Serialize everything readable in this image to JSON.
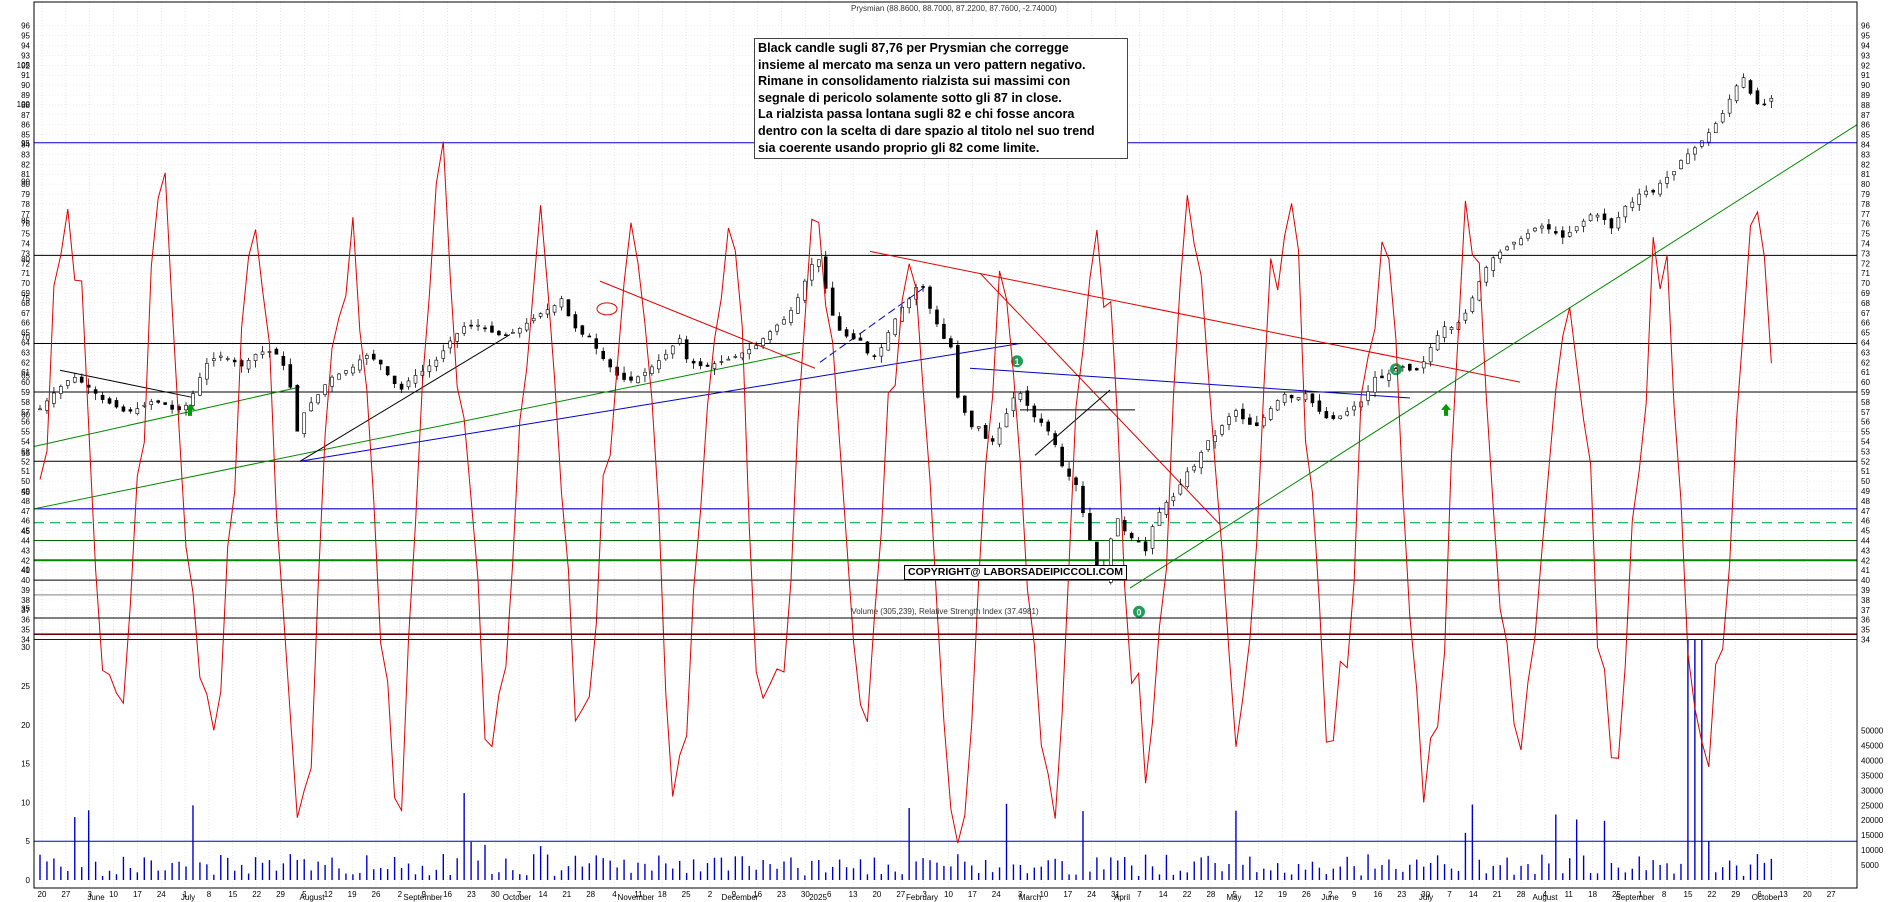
{
  "chart_data": [
    {
      "type": "candlestick",
      "title": "Prysmian (88.8600, 88.7000, 87.2200, 87.7600, -2.74000)",
      "ylim": [
        34,
        96
      ],
      "y_ticks": [
        34,
        35,
        36,
        37,
        38,
        39,
        40,
        41,
        42,
        43,
        44,
        45,
        46,
        47,
        48,
        49,
        50,
        51,
        52,
        53,
        54,
        55,
        56,
        57,
        58,
        59,
        60,
        61,
        62,
        63,
        64,
        65,
        66,
        67,
        68,
        69,
        70,
        71,
        72,
        73,
        74,
        75,
        76,
        77,
        78,
        79,
        80,
        81,
        82,
        83,
        84,
        85,
        86,
        87,
        88,
        89,
        90,
        91,
        92,
        93,
        94,
        95,
        96
      ],
      "last_close": 87.76,
      "price_path": [
        [
          0,
          57.3
        ],
        [
          10,
          59.2
        ],
        [
          20,
          60.6
        ],
        [
          30,
          59.4
        ],
        [
          38,
          58.2
        ],
        [
          45,
          57.6
        ],
        [
          52,
          56.9
        ],
        [
          60,
          57.4
        ],
        [
          68,
          58.1
        ],
        [
          75,
          57.8
        ],
        [
          82,
          57.0
        ],
        [
          88,
          57.6
        ],
        [
          93,
          59.0
        ],
        [
          100,
          61.8
        ],
        [
          108,
          62.7
        ],
        [
          115,
          62.3
        ],
        [
          122,
          61.6
        ],
        [
          130,
          62.8
        ],
        [
          137,
          63.2
        ],
        [
          143,
          62.8
        ],
        [
          148,
          61.4
        ],
        [
          153,
          58.4
        ],
        [
          156,
          54.2
        ],
        [
          160,
          57.2
        ],
        [
          167,
          58.5
        ],
        [
          175,
          60.4
        ],
        [
          183,
          61.0
        ],
        [
          190,
          61.6
        ],
        [
          196,
          62.8
        ],
        [
          200,
          62.5
        ],
        [
          206,
          61.8
        ],
        [
          212,
          60.2
        ],
        [
          218,
          59.2
        ],
        [
          224,
          60.4
        ],
        [
          232,
          61.2
        ],
        [
          240,
          62.3
        ],
        [
          248,
          64.2
        ],
        [
          256,
          65.6
        ],
        [
          264,
          65.8
        ],
        [
          272,
          65.1
        ],
        [
          280,
          64.6
        ],
        [
          288,
          65.2
        ],
        [
          296,
          66.2
        ],
        [
          304,
          67.1
        ],
        [
          310,
          67.6
        ],
        [
          316,
          68.6
        ],
        [
          320,
          66.2
        ],
        [
          326,
          64.9
        ],
        [
          332,
          64.6
        ],
        [
          338,
          62.8
        ],
        [
          344,
          61.6
        ],
        [
          350,
          60.4
        ],
        [
          356,
          60.1
        ],
        [
          362,
          60.6
        ],
        [
          368,
          61.3
        ],
        [
          374,
          62.2
        ],
        [
          380,
          63.1
        ],
        [
          386,
          64.6
        ],
        [
          390,
          62.4
        ],
        [
          396,
          61.8
        ],
        [
          402,
          61.5
        ],
        [
          408,
          61.9
        ],
        [
          414,
          62.2
        ],
        [
          420,
          62.6
        ],
        [
          426,
          63.1
        ],
        [
          432,
          63.6
        ],
        [
          438,
          64.6
        ],
        [
          444,
          65.6
        ],
        [
          450,
          66.4
        ],
        [
          456,
          67.8
        ],
        [
          462,
          70.2
        ],
        [
          468,
          72.6
        ],
        [
          472,
          72.2
        ],
        [
          476,
          68.0
        ],
        [
          480,
          66.2
        ],
        [
          484,
          64.9
        ],
        [
          490,
          64.4
        ],
        [
          496,
          64.2
        ],
        [
          502,
          62.2
        ],
        [
          508,
          63.4
        ],
        [
          514,
          65.6
        ],
        [
          520,
          67.4
        ],
        [
          526,
          68.6
        ],
        [
          530,
          69.8
        ],
        [
          534,
          69.6
        ],
        [
          538,
          67.2
        ],
        [
          542,
          65.8
        ],
        [
          546,
          64.4
        ],
        [
          550,
          63.8
        ],
        [
          554,
          58.6
        ],
        [
          558,
          57.2
        ],
        [
          562,
          55.4
        ],
        [
          566,
          55.8
        ],
        [
          570,
          54.6
        ],
        [
          574,
          53.6
        ],
        [
          578,
          54.8
        ],
        [
          582,
          56.2
        ],
        [
          586,
          57.6
        ],
        [
          590,
          59.2
        ],
        [
          594,
          58.6
        ],
        [
          598,
          57.0
        ],
        [
          602,
          56.2
        ],
        [
          606,
          55.8
        ],
        [
          610,
          54.8
        ],
        [
          614,
          53.4
        ],
        [
          618,
          51.2
        ],
        [
          622,
          50.4
        ],
        [
          626,
          49.6
        ],
        [
          630,
          46.8
        ],
        [
          634,
          44.2
        ],
        [
          638,
          41.6
        ],
        [
          641,
          39.2
        ],
        [
          644,
          40.8
        ],
        [
          648,
          45.6
        ],
        [
          652,
          46.4
        ],
        [
          656,
          44.6
        ],
        [
          660,
          44.2
        ],
        [
          664,
          43.8
        ],
        [
          668,
          42.9
        ],
        [
          672,
          45.4
        ],
        [
          676,
          46.8
        ],
        [
          680,
          47.8
        ],
        [
          686,
          48.6
        ],
        [
          692,
          50.8
        ],
        [
          698,
          51.6
        ],
        [
          704,
          53.9
        ],
        [
          710,
          54.6
        ],
        [
          716,
          56.1
        ],
        [
          722,
          57.2
        ],
        [
          728,
          56.0
        ],
        [
          734,
          55.4
        ],
        [
          740,
          56.6
        ],
        [
          746,
          57.9
        ],
        [
          752,
          58.8
        ],
        [
          758,
          58.2
        ],
        [
          764,
          58.9
        ],
        [
          770,
          57.6
        ],
        [
          776,
          56.4
        ],
        [
          782,
          56.3
        ],
        [
          788,
          56.8
        ],
        [
          794,
          57.6
        ],
        [
          800,
          58.2
        ],
        [
          806,
          60.5
        ],
        [
          812,
          60.4
        ],
        [
          818,
          61.3
        ],
        [
          824,
          61.6
        ],
        [
          830,
          60.9
        ],
        [
          836,
          62.1
        ],
        [
          842,
          64.2
        ],
        [
          848,
          65.6
        ],
        [
          854,
          65.5
        ],
        [
          860,
          66.6
        ],
        [
          866,
          68.8
        ],
        [
          872,
          71.2
        ],
        [
          878,
          72.6
        ],
        [
          884,
          73.4
        ],
        [
          890,
          74.1
        ],
        [
          896,
          74.6
        ],
        [
          902,
          75.5
        ],
        [
          908,
          75.8
        ],
        [
          914,
          75.2
        ],
        [
          920,
          74.6
        ],
        [
          926,
          75.4
        ],
        [
          932,
          76.2
        ],
        [
          938,
          77.1
        ],
        [
          944,
          76.6
        ],
        [
          950,
          75.4
        ],
        [
          956,
          77.6
        ],
        [
          962,
          78.2
        ],
        [
          968,
          79.4
        ],
        [
          974,
          79.1
        ],
        [
          980,
          80.4
        ],
        [
          986,
          81.0
        ],
        [
          992,
          82.6
        ],
        [
          998,
          83.4
        ],
        [
          1004,
          84.4
        ],
        [
          1010,
          85.6
        ],
        [
          1016,
          87.0
        ],
        [
          1020,
          88.4
        ],
        [
          1024,
          89.6
        ],
        [
          1028,
          91.2
        ],
        [
          1032,
          89.4
        ],
        [
          1036,
          88.6
        ],
        [
          1040,
          87.2
        ],
        [
          1044,
          89.4
        ],
        [
          1048,
          87.76
        ]
      ]
    },
    {
      "type": "bar+line",
      "title": "Volume (305,239), Relative Strength Index (37.4981)",
      "rsi_ylim": [
        0,
        105
      ],
      "rsi_ticks": [
        0,
        5,
        10,
        15,
        20,
        25,
        30,
        35,
        40,
        45,
        50,
        55,
        60,
        65,
        70,
        75,
        80,
        85,
        90,
        95,
        100,
        105
      ],
      "volume_ylim": [
        0,
        55000
      ],
      "volume_ticks": [
        "5000",
        "10000",
        "15000",
        "20000",
        "25000",
        "30000",
        "35000",
        "40000",
        "45000",
        "50000"
      ],
      "rsi_last": 37.4981,
      "volume_last": 305239
    }
  ],
  "x_axis": {
    "day_labels": [
      "20",
      "27",
      "3",
      "10",
      "17",
      "24",
      "1",
      "8",
      "15",
      "22",
      "29",
      "5",
      "12",
      "19",
      "26",
      "2",
      "9",
      "16",
      "23",
      "30",
      "7",
      "14",
      "21",
      "28",
      "4",
      "11",
      "18",
      "25",
      "2",
      "9",
      "16",
      "23",
      "30",
      "6",
      "13",
      "20",
      "27",
      "3",
      "10",
      "17",
      "24",
      "3",
      "10",
      "17",
      "24",
      "31",
      "7",
      "14",
      "22",
      "28",
      "5",
      "12",
      "19",
      "26",
      "2",
      "9",
      "16",
      "23",
      "30",
      "7",
      "14",
      "21",
      "28",
      "4",
      "11",
      "18",
      "25",
      "1",
      "8",
      "15",
      "22",
      "29",
      "6",
      "13",
      "20",
      "27"
    ],
    "month_labels": [
      "June",
      "July",
      "August",
      "September",
      "October",
      "November",
      "December",
      "2025",
      "February",
      "March",
      "April",
      "May",
      "June",
      "July",
      "August",
      "September",
      "October"
    ]
  },
  "annotation": {
    "lines": [
      "Black candle sugli 87,76 per Prysmian che corregge",
      "insieme al mercato ma senza un vero pattern negativo.",
      "Rimane in consolidamento rialzista sui massimi con",
      "segnale di pericolo solamente sotto gli 87 in close.",
      "La rialzista passa lontana sugli 82 e chi fosse ancora",
      "dentro con la scelta di dare spazio al titolo nel suo trend",
      "sia coerente usando proprio gli 82 come limite."
    ]
  },
  "copyright": "COPYRIGHT@ LABORSADEIPICCOLI.COM",
  "markers": {
    "zero": "0",
    "one": "1",
    "two": "2"
  },
  "colors": {
    "price": "#000000",
    "rsi": "#e00000",
    "volume": "#0000cc",
    "red_trend": "#e00000",
    "blue_trend": "#0000cc",
    "green_trend": "#008800",
    "green_dashed": "#00aa44"
  }
}
